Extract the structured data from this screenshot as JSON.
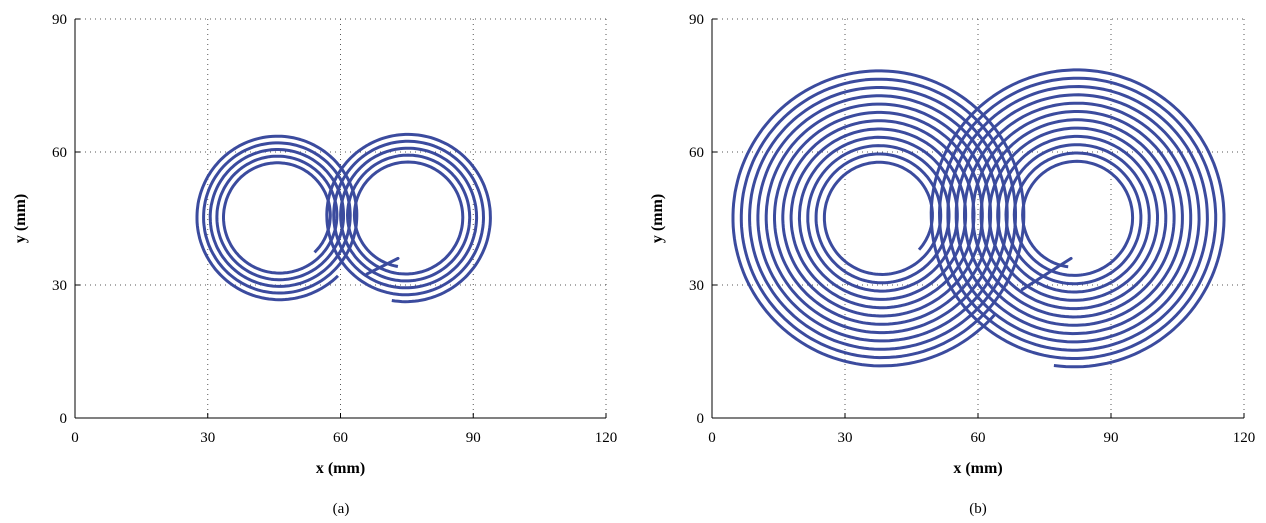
{
  "figure": {
    "captions": [
      "(a)",
      "(b)"
    ]
  },
  "chart_data": [
    {
      "type": "line",
      "panel": "(a)",
      "title": "",
      "xlabel": "x (mm)",
      "ylabel": "y (mm)",
      "xlim": [
        0,
        120
      ],
      "ylim": [
        0,
        90
      ],
      "xticks": [
        0,
        30,
        60,
        90,
        120
      ],
      "yticks": [
        0,
        30,
        60,
        90
      ],
      "grid": true,
      "grid_style": "dotted",
      "line_color": "#3b4b9e",
      "series": [
        {
          "path": "double spiral (figure-eight)",
          "left_spiral": {
            "center": [
              46,
              45.5
            ],
            "start_radius": 11.5,
            "end_radius": 19,
            "turns": 5,
            "start_point": [
              52.5,
              39
            ]
          },
          "right_spiral": {
            "center": [
              75,
              45.5
            ],
            "start_radius": 19.3,
            "end_radius": 11.5,
            "turns": 5,
            "end_point": [
              73,
              36
            ]
          },
          "end_segment": {
            "from": [
              73,
              36
            ],
            "to": [
              66,
              32.5
            ]
          },
          "start_point_note": "bottom of right spiral",
          "start_point": [
            71.5,
            26
          ]
        }
      ]
    },
    {
      "type": "line",
      "panel": "(b)",
      "title": "",
      "xlabel": "x (mm)",
      "ylabel": "y (mm)",
      "xlim": [
        0,
        120
      ],
      "ylim": [
        0,
        90
      ],
      "xticks": [
        0,
        30,
        60,
        90,
        120
      ],
      "yticks": [
        0,
        30,
        60,
        90
      ],
      "grid": true,
      "grid_style": "dotted",
      "line_color": "#3b4b9e",
      "series": [
        {
          "path": "double spiral (figure-eight)",
          "left_spiral": {
            "center": [
              38,
              45.5
            ],
            "start_radius": 11.5,
            "end_radius": 34,
            "turns": 12,
            "start_point": [
              45.5,
              39
            ]
          },
          "right_spiral": {
            "center": [
              82,
              45.5
            ],
            "start_radius": 34,
            "end_radius": 11.5,
            "turns": 12,
            "end_point": [
              81,
              36
            ]
          },
          "end_segment": {
            "from": [
              81,
              36
            ],
            "to": [
              70,
              29
            ]
          },
          "start_point": [
            77,
            11
          ]
        }
      ]
    }
  ]
}
